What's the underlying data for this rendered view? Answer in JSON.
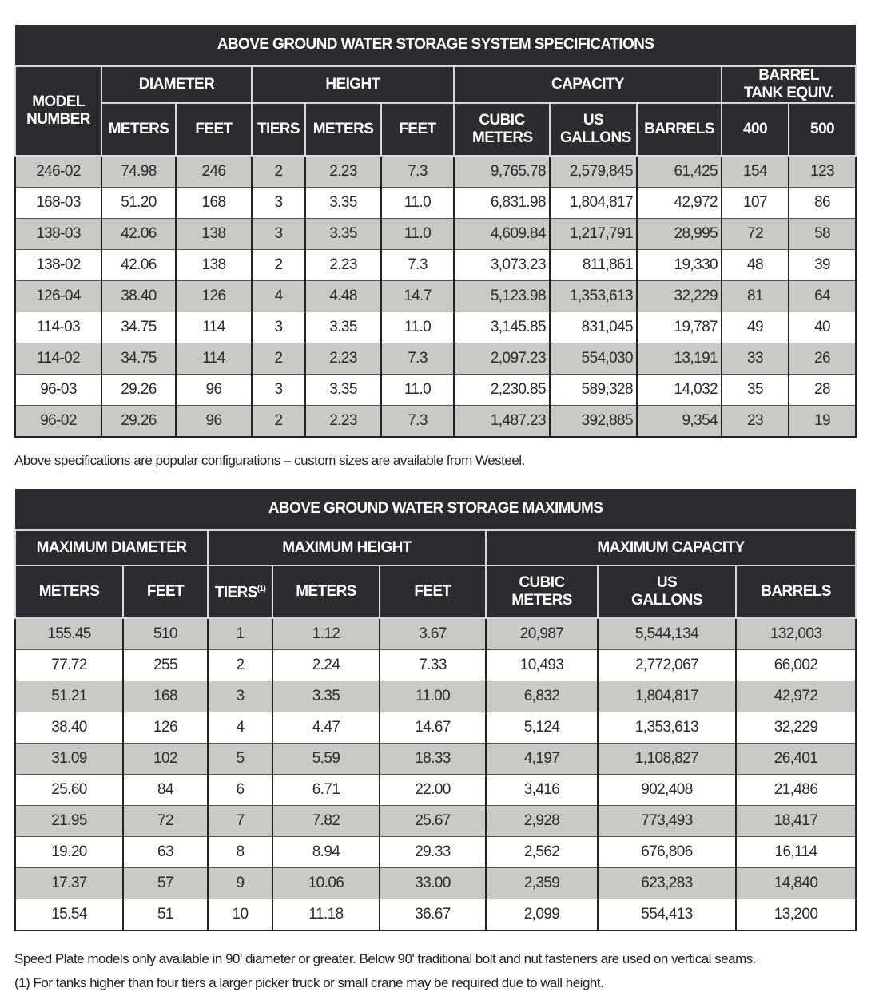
{
  "spec_table": {
    "title": "ABOVE GROUND WATER STORAGE SYSTEM SPECIFICATIONS",
    "headers": {
      "model_number": "MODEL NUMBER",
      "diameter": "DIAMETER",
      "height": "HEIGHT",
      "capacity": "CAPACITY",
      "barrel_tank_equiv": "BARREL TANK EQUIV.",
      "meters": "METERS",
      "feet": "FEET",
      "tiers": "TIERS",
      "h_meters": "METERS",
      "h_feet": "FEET",
      "cubic_meters": "CUBIC METERS",
      "us_gallons": "US GALLONS",
      "barrels": "BARRELS",
      "b400": "400",
      "b500": "500"
    },
    "rows": [
      [
        "246-02",
        "74.98",
        "246",
        "2",
        "2.23",
        "7.3",
        "9,765.78",
        "2,579,845",
        "61,425",
        "154",
        "123"
      ],
      [
        "168-03",
        "51.20",
        "168",
        "3",
        "3.35",
        "11.0",
        "6,831.98",
        "1,804,817",
        "42,972",
        "107",
        "86"
      ],
      [
        "138-03",
        "42.06",
        "138",
        "3",
        "3.35",
        "11.0",
        "4,609.84",
        "1,217,791",
        "28,995",
        "72",
        "58"
      ],
      [
        "138-02",
        "42.06",
        "138",
        "2",
        "2.23",
        "7.3",
        "3,073.23",
        "811,861",
        "19,330",
        "48",
        "39"
      ],
      [
        "126-04",
        "38.40",
        "126",
        "4",
        "4.48",
        "14.7",
        "5,123.98",
        "1,353,613",
        "32,229",
        "81",
        "64"
      ],
      [
        "114-03",
        "34.75",
        "114",
        "3",
        "3.35",
        "11.0",
        "3,145.85",
        "831,045",
        "19,787",
        "49",
        "40"
      ],
      [
        "114-02",
        "34.75",
        "114",
        "2",
        "2.23",
        "7.3",
        "2,097.23",
        "554,030",
        "13,191",
        "33",
        "26"
      ],
      [
        "96-03",
        "29.26",
        "96",
        "3",
        "3.35",
        "11.0",
        "2,230.85",
        "589,328",
        "14,032",
        "35",
        "28"
      ],
      [
        "96-02",
        "29.26",
        "96",
        "2",
        "2.23",
        "7.3",
        "1,487.23",
        "392,885",
        "9,354",
        "23",
        "19"
      ]
    ],
    "note": "Above specifications are popular configurations – custom sizes are available from Westeel."
  },
  "max_table": {
    "title": "ABOVE GROUND WATER STORAGE MAXIMUMS",
    "headers": {
      "max_diameter": "MAXIMUM DIAMETER",
      "max_height": "MAXIMUM HEIGHT",
      "max_capacity": "MAXIMUM CAPACITY",
      "meters": "METERS",
      "feet": "FEET",
      "tiers": "TIERS",
      "tiers_footnote": "(1)",
      "h_meters": "METERS",
      "h_feet": "FEET",
      "cubic_meters": "CUBIC METERS",
      "us_gallons": "US GALLONS",
      "barrels": "BARRELS"
    },
    "rows": [
      [
        "155.45",
        "510",
        "1",
        "1.12",
        "3.67",
        "20,987",
        "5,544,134",
        "132,003"
      ],
      [
        "77.72",
        "255",
        "2",
        "2.24",
        "7.33",
        "10,493",
        "2,772,067",
        "66,002"
      ],
      [
        "51.21",
        "168",
        "3",
        "3.35",
        "11.00",
        "6,832",
        "1,804,817",
        "42,972"
      ],
      [
        "38.40",
        "126",
        "4",
        "4.47",
        "14.67",
        "5,124",
        "1,353,613",
        "32,229"
      ],
      [
        "31.09",
        "102",
        "5",
        "5.59",
        "18.33",
        "4,197",
        "1,108,827",
        "26,401"
      ],
      [
        "25.60",
        "84",
        "6",
        "6.71",
        "22.00",
        "3,416",
        "902,408",
        "21,486"
      ],
      [
        "21.95",
        "72",
        "7",
        "7.82",
        "25.67",
        "2,928",
        "773,493",
        "18,417"
      ],
      [
        "19.20",
        "63",
        "8",
        "8.94",
        "29.33",
        "2,562",
        "676,806",
        "16,114"
      ],
      [
        "17.37",
        "57",
        "9",
        "10.06",
        "33.00",
        "2,359",
        "623,283",
        "14,840"
      ],
      [
        "15.54",
        "51",
        "10",
        "11.18",
        "36.67",
        "2,099",
        "554,413",
        "13,200"
      ]
    ],
    "notes": [
      "Speed Plate models only available in 90' diameter or greater. Below 90' traditional bolt and nut fasteners are used on vertical seams.",
      "(1) For tanks higher than four tiers a larger picker truck or small crane may be required due to wall height."
    ]
  },
  "colors": {
    "header_bg": "#2b2b30",
    "shaded_row": "#c9c9c5"
  }
}
